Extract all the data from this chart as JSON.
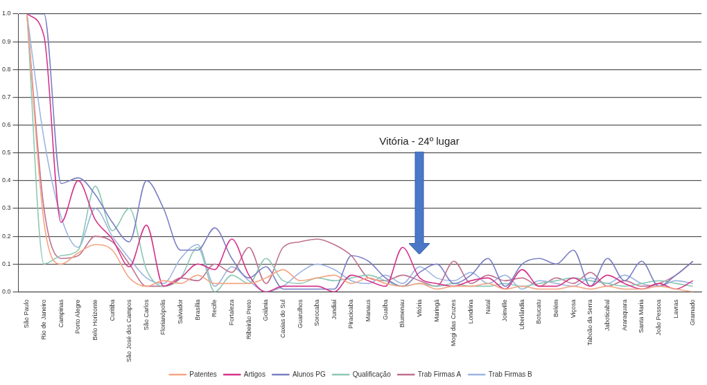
{
  "chart_data": {
    "type": "line",
    "categories": [
      "São Paulo",
      "Rio de Janeiro",
      "Campinas",
      "Porto Alegre",
      "Belo Horizonte",
      "Curitiba",
      "São José dos Campos",
      "São Carlos",
      "Florianópolis",
      "Salvador",
      "Brasília",
      "Recife",
      "Fortaleza",
      "Ribeirão Preto",
      "Goiânia",
      "Caxias do Sul",
      "Guarulhos",
      "Sorocaba",
      "Jundiaí",
      "Piracicaba",
      "Manaus",
      "Guaíba",
      "Blumenau",
      "Vitória",
      "Maringá",
      "Mogi das Cruzes",
      "Londrina",
      "Natal",
      "Joinville",
      "Uberlândia",
      "Botucatu",
      "Belém",
      "Viçosa",
      "Taboão da Serra",
      "Jaboticabal",
      "Araraquara",
      "Santa Maria",
      "João Pessoa",
      "Lavras",
      "Gramado"
    ],
    "series": [
      {
        "name": "Patentes",
        "color": "#f4a582",
        "values": [
          1.0,
          0.25,
          0.1,
          0.14,
          0.17,
          0.15,
          0.05,
          0.02,
          0.04,
          0.03,
          0.06,
          0.03,
          0.03,
          0.03,
          0.05,
          0.08,
          0.04,
          0.05,
          0.06,
          0.03,
          0.05,
          0.03,
          0.02,
          0.03,
          0.01,
          0.02,
          0.02,
          0.03,
          0.01,
          0.02,
          0.01,
          0.01,
          0.02,
          0.01,
          0.02,
          0.01,
          0.01,
          0.02,
          0.01,
          0.0
        ]
      },
      {
        "name": "Artigos",
        "color": "#d6338a",
        "values": [
          1.0,
          0.92,
          0.25,
          0.4,
          0.26,
          0.19,
          0.09,
          0.24,
          0.02,
          0.05,
          0.1,
          0.08,
          0.19,
          0.06,
          0.0,
          0.02,
          0.02,
          0.02,
          0.0,
          0.06,
          0.04,
          0.02,
          0.16,
          0.05,
          0.03,
          0.02,
          0.04,
          0.05,
          0.01,
          0.08,
          0.02,
          0.02,
          0.05,
          0.02,
          0.06,
          0.03,
          0.01,
          0.03,
          0.01,
          0.04
        ]
      },
      {
        "name": "Alunos PG",
        "color": "#7a7fc4",
        "values": [
          1.0,
          1.0,
          0.39,
          0.41,
          0.35,
          0.25,
          0.18,
          0.4,
          0.3,
          0.15,
          0.15,
          0.23,
          0.12,
          0.05,
          0.09,
          0.01,
          0.01,
          0.01,
          0.01,
          0.13,
          0.11,
          0.05,
          0.02,
          0.07,
          0.1,
          0.03,
          0.06,
          0.12,
          0.02,
          0.1,
          0.12,
          0.1,
          0.15,
          0.02,
          0.12,
          0.04,
          0.11,
          0.02,
          0.06,
          0.11
        ]
      },
      {
        "name": "Qualificação",
        "color": "#8cc8b4",
        "values": [
          1.0,
          0.1,
          0.13,
          0.15,
          0.38,
          0.22,
          0.3,
          0.08,
          0.02,
          0.05,
          0.16,
          0.0,
          0.06,
          0.03,
          0.12,
          0.04,
          0.03,
          0.05,
          0.04,
          0.05,
          0.06,
          0.04,
          0.02,
          0.03,
          0.02,
          0.03,
          0.02,
          0.02,
          0.03,
          0.02,
          0.03,
          0.04,
          0.05,
          0.04,
          0.03,
          0.02,
          0.03,
          0.04,
          0.03,
          0.02
        ]
      },
      {
        "name": "Trab Firmas A",
        "color": "#c07090",
        "values": [
          1.0,
          0.3,
          0.12,
          0.13,
          0.2,
          0.18,
          0.1,
          0.02,
          0.02,
          0.05,
          0.04,
          0.1,
          0.07,
          0.16,
          0.03,
          0.16,
          0.18,
          0.19,
          0.17,
          0.13,
          0.05,
          0.04,
          0.06,
          0.04,
          0.02,
          0.11,
          0.03,
          0.06,
          0.04,
          0.05,
          0.02,
          0.05,
          0.03,
          0.07,
          0.02,
          0.04,
          0.02,
          0.03,
          0.06,
          0.11
        ]
      },
      {
        "name": "Trab Firmas B",
        "color": "#9cb4e0",
        "values": [
          1.0,
          0.55,
          0.27,
          0.16,
          0.3,
          0.2,
          0.12,
          0.05,
          0.03,
          0.12,
          0.17,
          0.02,
          0.09,
          0.04,
          0.0,
          0.02,
          0.07,
          0.1,
          0.08,
          0.04,
          0.03,
          0.06,
          0.03,
          0.09,
          0.05,
          0.04,
          0.07,
          0.03,
          0.06,
          0.01,
          0.04,
          0.03,
          0.02,
          0.05,
          0.03,
          0.06,
          0.03,
          0.02,
          0.04,
          0.03
        ]
      }
    ],
    "ylim": [
      0,
      1
    ],
    "yticks": [
      {
        "value": 0,
        "label": "0.0"
      },
      0.1,
      0.2,
      0.3,
      0.4,
      0.5,
      0.6,
      0.7,
      0.8,
      0.9,
      {
        "value": 1,
        "label": "1.0"
      }
    ],
    "grid": "y",
    "legend": "bottom",
    "marker": "none",
    "line_style": "solid",
    "annotations": [
      "Vitória - 24º lugar"
    ]
  }
}
